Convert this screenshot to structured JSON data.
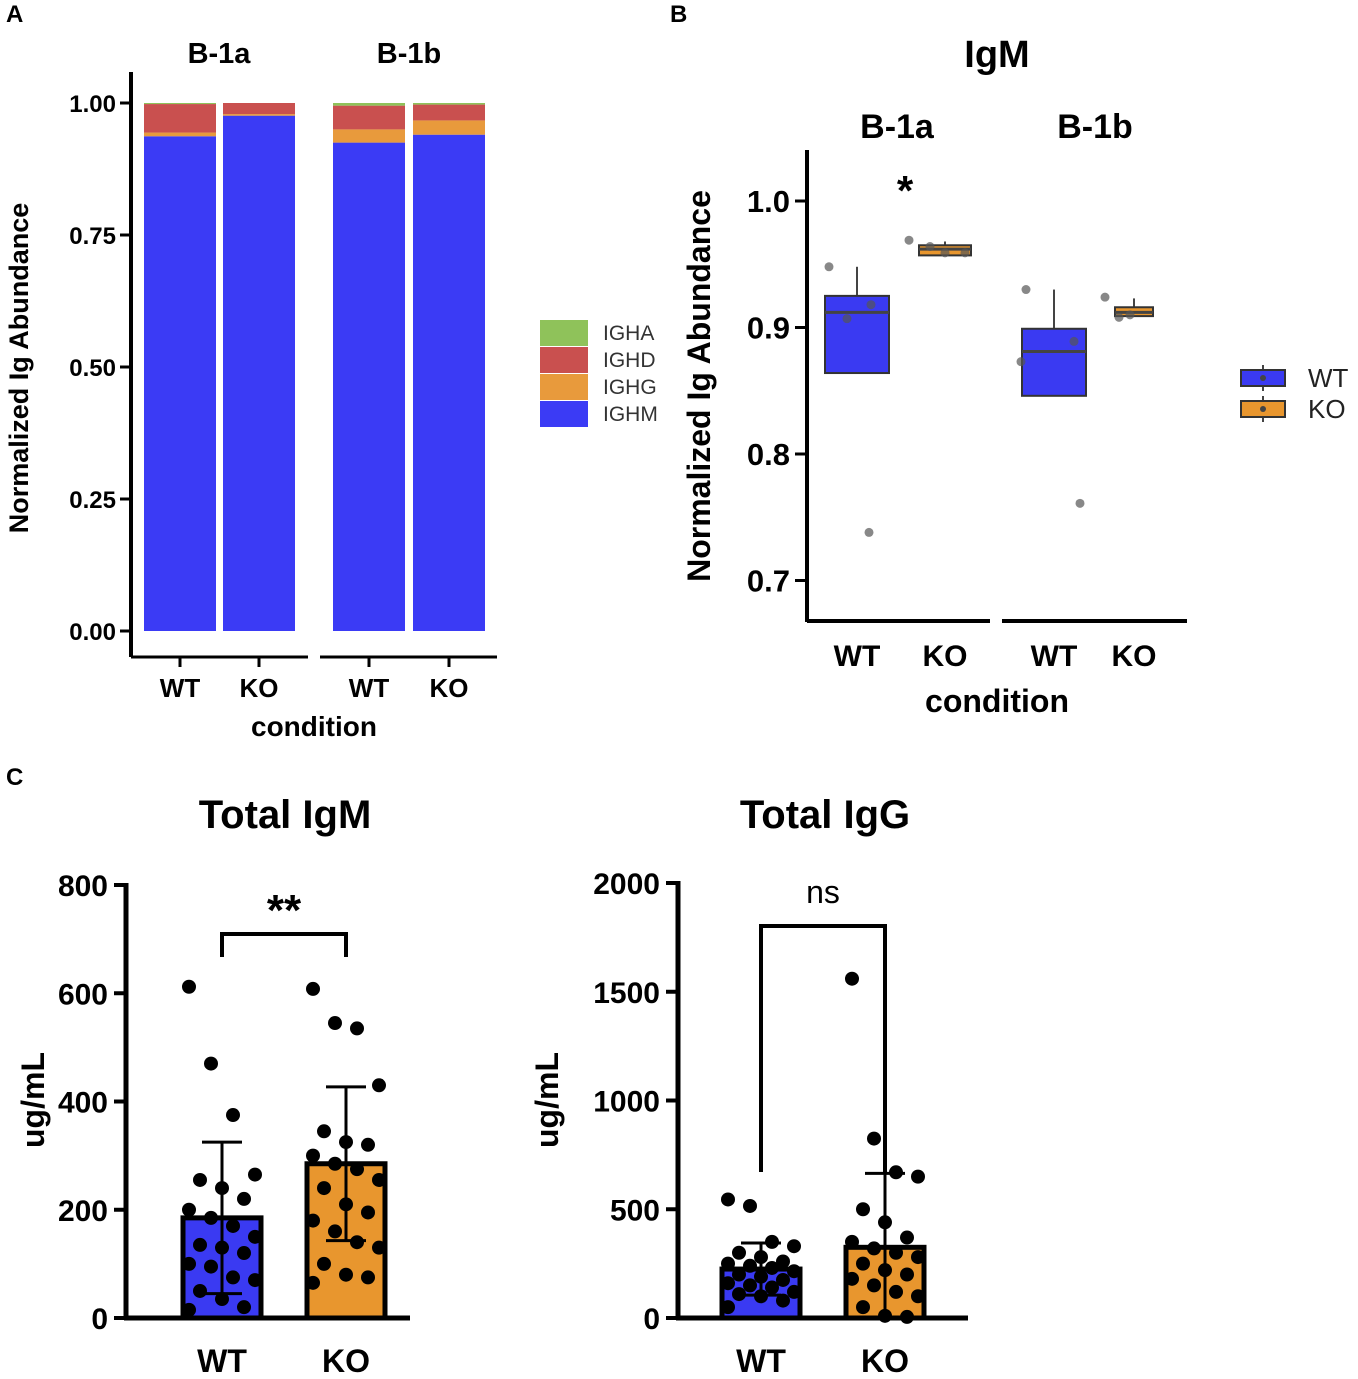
{
  "colors": {
    "wt": "#3a3af2",
    "ko": "#e8962e",
    "igha": "#8fc25a",
    "ighd": "#c9504f",
    "ighg": "#e89a3c",
    "ighm": "#3b3bf5",
    "axis": "#000000"
  },
  "chart_data": [
    {
      "panel": "A",
      "type": "bar",
      "stacked": true,
      "facets": [
        "B-1a",
        "B-1b"
      ],
      "categories": [
        "WT",
        "KO",
        "WT",
        "KO"
      ],
      "xlabel": "condition",
      "ylabel": "Normalized Ig Abundance",
      "ylim": [
        0,
        1
      ],
      "yticks": [
        "0.00",
        "0.25",
        "0.50",
        "0.75",
        "1.00"
      ],
      "legend": [
        "IGHA",
        "IGHD",
        "IGHG",
        "IGHM"
      ],
      "series": [
        {
          "name": "IGHM",
          "values": [
            0.937,
            0.976,
            0.925,
            0.94
          ]
        },
        {
          "name": "IGHG",
          "values": [
            0.007,
            0.003,
            0.025,
            0.027
          ]
        },
        {
          "name": "IGHD",
          "values": [
            0.054,
            0.021,
            0.045,
            0.03
          ]
        },
        {
          "name": "IGHA",
          "values": [
            0.002,
            0.0,
            0.005,
            0.003
          ]
        }
      ]
    },
    {
      "panel": "B",
      "type": "box",
      "title": "IgM",
      "facets": [
        "B-1a",
        "B-1b"
      ],
      "categories": [
        "WT",
        "KO",
        "WT",
        "KO"
      ],
      "xlabel": "condition",
      "ylabel": "Normalized Ig Abundance",
      "ylim": [
        0.665,
        1.035
      ],
      "yticks": [
        "0.7",
        "0.8",
        "0.9",
        "1.0"
      ],
      "legend": [
        "WT",
        "KO"
      ],
      "annotation": "*",
      "boxes": [
        {
          "group": "B-1a",
          "condition": "WT",
          "q1": 0.864,
          "median": 0.912,
          "q3": 0.925,
          "whisker_low": 0.864,
          "whisker_high": 0.948,
          "points": [
            0.948,
            0.907,
            0.918,
            0.738
          ]
        },
        {
          "group": "B-1a",
          "condition": "KO",
          "q1": 0.957,
          "median": 0.962,
          "q3": 0.965,
          "whisker_low": 0.957,
          "whisker_high": 0.968,
          "points": [
            0.969,
            0.964,
            0.959,
            0.959
          ]
        },
        {
          "group": "B-1b",
          "condition": "WT",
          "q1": 0.846,
          "median": 0.881,
          "q3": 0.899,
          "whisker_low": 0.846,
          "whisker_high": 0.93,
          "points": [
            0.93,
            0.873,
            0.889,
            0.761
          ]
        },
        {
          "group": "B-1b",
          "condition": "KO",
          "q1": 0.909,
          "median": 0.912,
          "q3": 0.916,
          "whisker_low": 0.909,
          "whisker_high": 0.923,
          "points": [
            0.924,
            0.908,
            0.91
          ]
        }
      ]
    },
    {
      "panel": "C",
      "type": "bar",
      "title": "Total IgM",
      "categories": [
        "WT",
        "KO"
      ],
      "ylabel": "ug/mL",
      "ylim": [
        0,
        800
      ],
      "yticks": [
        "0",
        "200",
        "400",
        "600",
        "800"
      ],
      "values": [
        185,
        285
      ],
      "sd": [
        140,
        142
      ],
      "significance": "**",
      "points": [
        [
          612,
          470,
          375,
          265,
          255,
          240,
          220,
          200,
          185,
          170,
          150,
          135,
          130,
          120,
          100,
          95,
          75,
          70,
          50,
          35,
          20,
          15
        ],
        [
          608,
          545,
          535,
          430,
          345,
          325,
          320,
          300,
          285,
          275,
          255,
          240,
          210,
          195,
          180,
          160,
          140,
          130,
          100,
          80,
          75,
          65
        ]
      ]
    },
    {
      "panel": "C",
      "type": "bar",
      "title": "Total IgG",
      "categories": [
        "WT",
        "KO"
      ],
      "ylabel": "ug/mL",
      "ylim": [
        0,
        2000
      ],
      "yticks": [
        "0",
        "500",
        "1000",
        "1500",
        "2000"
      ],
      "values": [
        225,
        325
      ],
      "sd": [
        120,
        340
      ],
      "significance": "ns",
      "points": [
        [
          545,
          515,
          350,
          330,
          300,
          280,
          260,
          250,
          240,
          230,
          215,
          200,
          190,
          175,
          160,
          150,
          140,
          120,
          110,
          100,
          80,
          50
        ],
        [
          1560,
          825,
          670,
          650,
          500,
          440,
          370,
          350,
          320,
          300,
          280,
          250,
          220,
          200,
          180,
          150,
          120,
          100,
          50,
          10,
          5
        ]
      ]
    }
  ],
  "panel_labels": {
    "a": "A",
    "b": "B",
    "c": "C"
  }
}
